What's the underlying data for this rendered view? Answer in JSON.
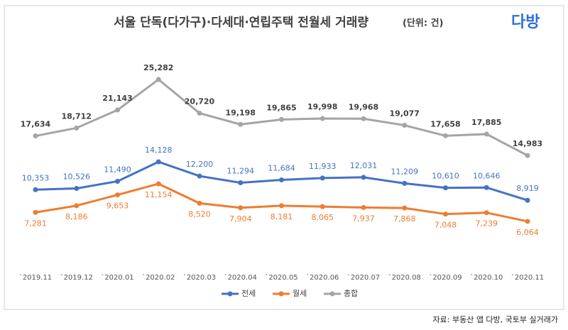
{
  "chart_data": {
    "type": "line",
    "title": "서울 단독(다가구)·다세대·연립주택 전월세 거래량",
    "subtitle": "(단위: 건)",
    "categories": [
      "`2019.11",
      "`2019.12",
      "`2020.01",
      "`2020.02",
      "`2020.03",
      "`2020.04",
      "`2020.05",
      "`2020.06",
      "`2020.07",
      "`2020.08",
      "`2020.09",
      "`2020.10",
      "`2020.11"
    ],
    "series": [
      {
        "name": "전세",
        "color": "#4472c4",
        "values": [
          10353,
          10526,
          11490,
          14128,
          12200,
          11294,
          11684,
          11933,
          12031,
          11209,
          10610,
          10646,
          8919
        ],
        "value_labels": [
          "10,353",
          "10,526",
          "11,490",
          "14,128",
          "12,200",
          "11,294",
          "11,684",
          "11,933",
          "12,031",
          "11,209",
          "10,610",
          "10,646",
          "8,919"
        ]
      },
      {
        "name": "월세",
        "color": "#ed7d31",
        "values": [
          7281,
          8186,
          9653,
          11154,
          8520,
          7904,
          8181,
          8065,
          7937,
          7868,
          7048,
          7239,
          6064
        ],
        "value_labels": [
          "7,281",
          "8,186",
          "9,653",
          "11,154",
          "8,520",
          "7,904",
          "8,181",
          "8,065",
          "7,937",
          "7,868",
          "7,048",
          "7,239",
          "6,064"
        ]
      },
      {
        "name": "총합",
        "color": "#a5a5a5",
        "values": [
          17634,
          18712,
          21143,
          25282,
          20720,
          19198,
          19865,
          19998,
          19968,
          19077,
          17658,
          17885,
          14983
        ],
        "value_labels": [
          "17,634",
          "18,712",
          "21,143",
          "25,282",
          "20,720",
          "19,198",
          "19,865",
          "19,998",
          "19,968",
          "19,077",
          "17,658",
          "17,885",
          "14,983"
        ]
      }
    ],
    "legend": "bottom"
  },
  "logo": "다방",
  "source": "자료: 부동산 앱 다방, 국토부 실거래가"
}
